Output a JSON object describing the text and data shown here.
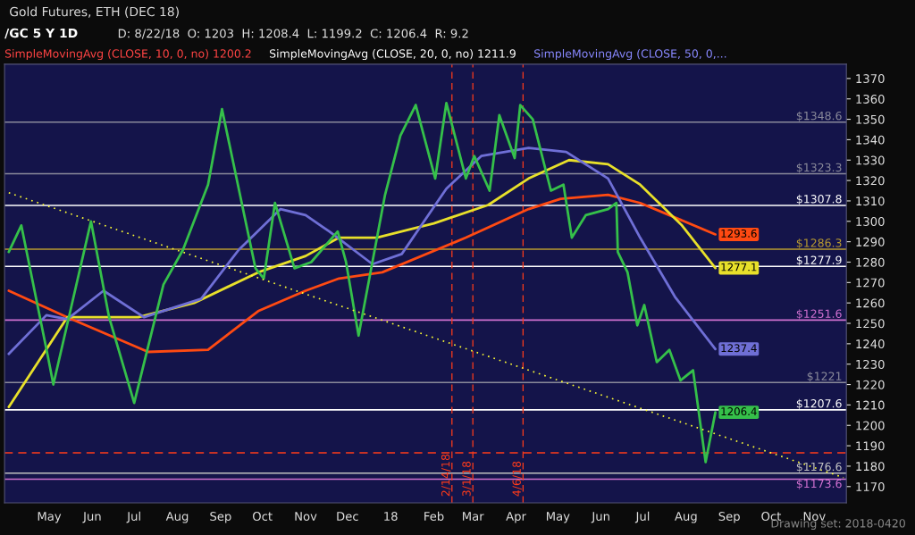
{
  "chart_data": {
    "type": "line",
    "title": "/GC 5 Y 1D",
    "subtitle": "D: 8/22/18  O: 1203  H: 1208.4  L: 1199.2  C: 1206.4  R: 9.2",
    "annotations": [
      "SimpleMovingAvg (CLOSE, 10, 0, no) 1200.2",
      "SimpleMovingAvg (CLOSE, 20, 0, no) 1211.9",
      "SimpleMovingAvg (CLOSE, 50, 0,...",
      "Gold Futures, ETH (DEC 18)",
      "Drawing set: 2018-0420"
    ],
    "xlim": [
      "2017-03-30",
      "2018-11-24"
    ],
    "ylim": [
      1162,
      1377
    ],
    "xticks": [
      {
        "value": "2017-05-01",
        "label": "May"
      },
      {
        "value": "2017-06-01",
        "label": "Jun"
      },
      {
        "value": "2017-07-01",
        "label": "Jul"
      },
      {
        "value": "2017-08-01",
        "label": "Aug"
      },
      {
        "value": "2017-09-01",
        "label": "Sep"
      },
      {
        "value": "2017-10-01",
        "label": "Oct"
      },
      {
        "value": "2017-11-01",
        "label": "Nov"
      },
      {
        "value": "2017-12-01",
        "label": "Dec"
      },
      {
        "value": "2018-01-01",
        "label": "18"
      },
      {
        "value": "2018-02-01",
        "label": "Feb"
      },
      {
        "value": "2018-03-01",
        "label": "Mar"
      },
      {
        "value": "2018-04-01",
        "label": "Apr"
      },
      {
        "value": "2018-05-01",
        "label": "May"
      },
      {
        "value": "2018-06-01",
        "label": "Jun"
      },
      {
        "value": "2018-07-01",
        "label": "Jul"
      },
      {
        "value": "2018-08-01",
        "label": "Aug"
      },
      {
        "value": "2018-09-01",
        "label": "Sep"
      },
      {
        "value": "2018-10-01",
        "label": "Oct"
      },
      {
        "value": "2018-11-01",
        "label": "Nov"
      }
    ],
    "yticks": [
      1170,
      1180,
      1190,
      1200,
      1210,
      1220,
      1230,
      1240,
      1250,
      1260,
      1270,
      1280,
      1290,
      1300,
      1310,
      1320,
      1330,
      1340,
      1350,
      1360,
      1370
    ],
    "grid": false,
    "legend": false,
    "series": [
      {
        "color": "#ff4a12",
        "x": [
          "2017-04-02",
          "2017-05-14",
          "2017-07-11",
          "2017-08-23",
          "2017-09-28",
          "2017-11-01",
          "2017-11-25",
          "2017-12-26",
          "2018-02-24",
          "2018-04-10",
          "2018-05-03",
          "2018-06-06",
          "2018-06-29",
          "2018-08-22"
        ],
        "values": [
          1266,
          1253,
          1236,
          1237,
          1256,
          1266,
          1272,
          1275,
          1292,
          1306,
          1311,
          1313,
          1309,
          1293.6
        ],
        "value_labels": [
          null,
          null,
          null,
          null,
          null,
          null,
          null,
          null,
          null,
          null,
          null,
          null,
          null,
          "1293.6"
        ]
      },
      {
        "color": "#e8e02a",
        "x": [
          "2017-04-02",
          "2017-05-14",
          "2017-07-04",
          "2017-08-13",
          "2017-09-28",
          "2017-11-01",
          "2017-11-25",
          "2017-12-22",
          "2018-02-01",
          "2018-03-12",
          "2018-04-10",
          "2018-05-09",
          "2018-06-06",
          "2018-06-29",
          "2018-07-29",
          "2018-08-22"
        ],
        "values": [
          1209,
          1253,
          1253,
          1260,
          1275,
          1283,
          1292,
          1292,
          1299,
          1308,
          1321,
          1330,
          1328,
          1318,
          1298,
          1277.1
        ],
        "value_labels": [
          null,
          null,
          null,
          null,
          null,
          null,
          null,
          null,
          null,
          null,
          null,
          null,
          null,
          null,
          null,
          "1277.1"
        ]
      },
      {
        "color": "#6f6fd6",
        "x": [
          "2017-04-02",
          "2017-04-29",
          "2017-05-14",
          "2017-06-09",
          "2017-07-08",
          "2017-08-18",
          "2017-09-14",
          "2017-10-14",
          "2017-11-01",
          "2017-11-18",
          "2017-12-19",
          "2018-01-09",
          "2018-02-10",
          "2018-03-07",
          "2018-04-10",
          "2018-05-07",
          "2018-06-06",
          "2018-06-29",
          "2018-07-24",
          "2018-08-22"
        ],
        "values": [
          1235,
          1254,
          1252,
          1266,
          1253,
          1262,
          1286,
          1306,
          1303,
          1295,
          1279,
          1284,
          1316,
          1332,
          1336,
          1334,
          1321,
          1292,
          1263,
          1237.4
        ],
        "value_labels": [
          null,
          null,
          null,
          null,
          null,
          null,
          null,
          null,
          null,
          null,
          null,
          null,
          null,
          null,
          null,
          null,
          null,
          null,
          null,
          "1237.4"
        ]
      },
      {
        "color": "#35c04a",
        "x": [
          "2017-04-02",
          "2017-04-11",
          "2017-04-30",
          "2017-05-04",
          "2017-05-31",
          "2017-06-13",
          "2017-07-01",
          "2017-07-22",
          "2017-08-05",
          "2017-08-23",
          "2017-09-02",
          "2017-09-26",
          "2017-10-02",
          "2017-10-10",
          "2017-10-24",
          "2017-11-05",
          "2017-11-24",
          "2017-11-30",
          "2017-12-09",
          "2017-12-28",
          "2018-01-08",
          "2018-01-19",
          "2018-02-02",
          "2018-02-10",
          "2018-02-24",
          "2018-03-02",
          "2018-03-13",
          "2018-03-20",
          "2018-03-31",
          "2018-04-04",
          "2018-04-13",
          "2018-04-26",
          "2018-05-05",
          "2018-05-11",
          "2018-05-21",
          "2018-06-06",
          "2018-06-12",
          "2018-06-13",
          "2018-06-20",
          "2018-06-27",
          "2018-07-02",
          "2018-07-11",
          "2018-07-20",
          "2018-07-28",
          "2018-08-06",
          "2018-08-15",
          "2018-08-22"
        ],
        "values": [
          1285,
          1298,
          1234,
          1220,
          1300,
          1253,
          1211,
          1269,
          1286,
          1318,
          1355,
          1277,
          1272,
          1309,
          1277,
          1280,
          1295,
          1280,
          1244,
          1313,
          1342,
          1357,
          1321,
          1358,
          1321,
          1332,
          1315,
          1352,
          1331,
          1357,
          1350,
          1315,
          1318,
          1292,
          1303,
          1306,
          1309,
          1285,
          1275,
          1249,
          1259,
          1231,
          1237,
          1222,
          1227,
          1182,
          1206.4
        ],
        "value_labels": [
          null,
          null,
          null,
          null,
          null,
          null,
          null,
          null,
          null,
          null,
          null,
          null,
          null,
          null,
          null,
          null,
          null,
          null,
          null,
          null,
          null,
          null,
          null,
          null,
          null,
          null,
          null,
          null,
          null,
          null,
          null,
          null,
          null,
          null,
          null,
          null,
          null,
          null,
          null,
          null,
          null,
          null,
          null,
          null,
          null,
          null,
          "1206.4"
        ]
      },
      {
        "color": "#ffff33",
        "line_style": "dotted",
        "x": [
          "2017-04-02",
          "2018-11-22"
        ],
        "values": [
          1314,
          1174.4
        ]
      }
    ],
    "ref_lines": [
      {
        "axis": "y",
        "value": 1348.6,
        "label": "$1348.6",
        "color": "#8a8a9a"
      },
      {
        "axis": "y",
        "value": 1323.3,
        "label": "$1323.3",
        "color": "#8a8a9a"
      },
      {
        "axis": "y",
        "value": 1307.8,
        "label": "$1307.8",
        "color": "#ffffff"
      },
      {
        "axis": "y",
        "value": 1286.3,
        "label": "$1286.3",
        "color": "#b89a30"
      },
      {
        "axis": "y",
        "value": 1277.9,
        "label": "$1277.9",
        "color": "#ffffff"
      },
      {
        "axis": "y",
        "value": 1251.6,
        "label": "$1251.6",
        "color": "#d070d0"
      },
      {
        "axis": "y",
        "value": 1221,
        "label": "$1221",
        "color": "#8a8a9a"
      },
      {
        "axis": "y",
        "value": 1207.6,
        "label": "$1207.6",
        "color": "#ffffff"
      },
      {
        "axis": "y",
        "value": 1186.5,
        "color": "#ff3b1a",
        "line_style": "dashed"
      },
      {
        "axis": "y",
        "value": 1176.6,
        "label": "$1176.6",
        "color": "#c0c0c0"
      },
      {
        "axis": "y",
        "value": 1173.6,
        "label": "$1173.6",
        "color": "#d070d0"
      },
      {
        "axis": "x",
        "value": "2018-02-14",
        "label": "2/14/18",
        "color": "#ff3b1a",
        "line_style": "dashed"
      },
      {
        "axis": "x",
        "value": "2018-03-01",
        "label": "3/1/18",
        "color": "#ff3b1a",
        "line_style": "dashed"
      },
      {
        "axis": "x",
        "value": "2018-04-06",
        "label": "4/6/18",
        "color": "#ff3b1a",
        "line_style": "dashed"
      }
    ]
  }
}
